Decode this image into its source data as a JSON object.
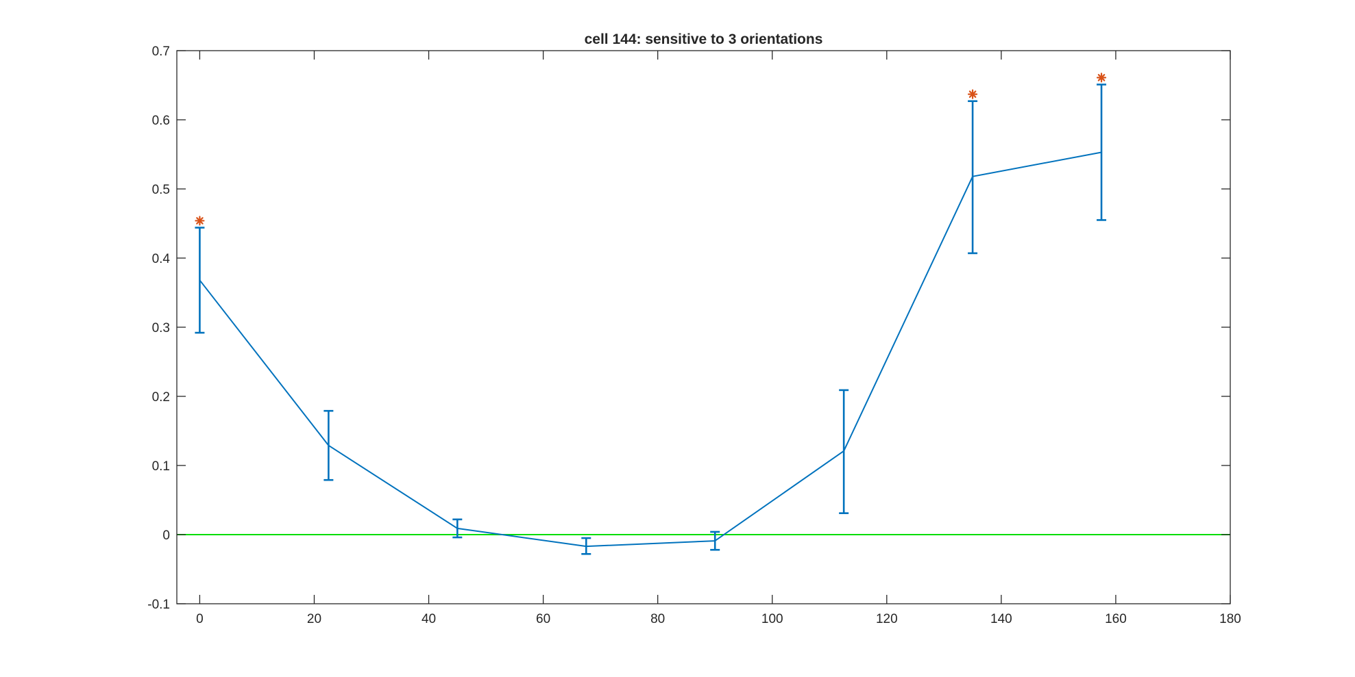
{
  "chart_data": {
    "type": "line",
    "title": "cell 144: sensitive to 3 orientations",
    "xlabel": "",
    "ylabel": "",
    "xlim": [
      -4,
      180
    ],
    "ylim": [
      -0.1,
      0.7
    ],
    "xticks": [
      0,
      20,
      40,
      60,
      80,
      100,
      120,
      140,
      160,
      180
    ],
    "yticks": [
      -0.1,
      0,
      0.1,
      0.2,
      0.3,
      0.4,
      0.5,
      0.6,
      0.7
    ],
    "xtick_labels": [
      "0",
      "20",
      "40",
      "60",
      "80",
      "100",
      "120",
      "140",
      "160",
      "180"
    ],
    "ytick_labels": [
      "-0.1",
      "0",
      "0.1",
      "0.2",
      "0.3",
      "0.4",
      "0.5",
      "0.6",
      "0.7"
    ],
    "grid": false,
    "legend": "none",
    "series": [
      {
        "type": "errorbar",
        "color": "#0072BD",
        "x": [
          0,
          22.5,
          45,
          67.5,
          90,
          112.5,
          135,
          157.5
        ],
        "y": [
          0.368,
          0.129,
          0.009,
          -0.017,
          -0.009,
          0.121,
          0.518,
          0.553
        ],
        "lower": [
          0.292,
          0.079,
          -0.004,
          -0.028,
          -0.022,
          0.031,
          0.407,
          0.455
        ],
        "upper": [
          0.444,
          0.179,
          0.022,
          -0.005,
          0.004,
          0.209,
          0.627,
          0.651
        ]
      },
      {
        "type": "reference-line",
        "color": "#00DD00",
        "y": 0
      },
      {
        "type": "markers",
        "marker": "*",
        "color": "#D95319",
        "x": [
          0,
          135,
          157.5
        ],
        "y": [
          0.454,
          0.637,
          0.661
        ]
      }
    ]
  }
}
